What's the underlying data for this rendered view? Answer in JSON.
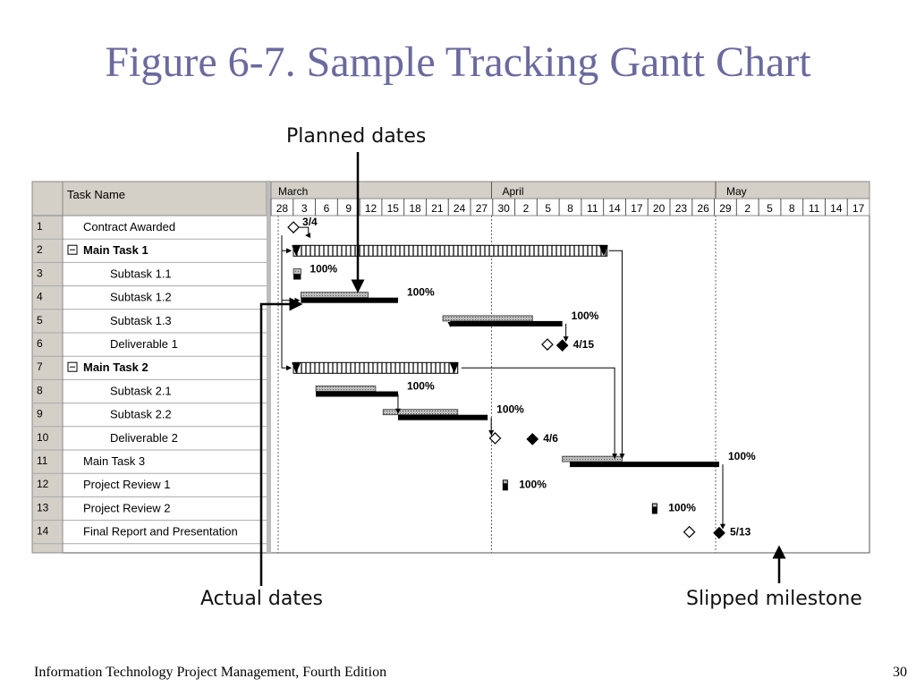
{
  "slide": {
    "title": "Figure 6-7. Sample Tracking Gantt Chart",
    "footer_left": "Information Technology Project Management, Fourth Edition",
    "page_number": "30"
  },
  "callouts": {
    "planned": "Planned dates",
    "actual": "Actual dates",
    "slipped": "Slipped milestone"
  },
  "chart_data": {
    "type": "gantt",
    "table_header": {
      "col": "Task Name"
    },
    "timescale": {
      "months": [
        "March",
        "April",
        "May"
      ],
      "days": [
        "28",
        "3",
        "6",
        "9",
        "12",
        "15",
        "18",
        "21",
        "24",
        "27",
        "30",
        "2",
        "5",
        "8",
        "11",
        "14",
        "17",
        "20",
        "23",
        "26",
        "29",
        "2",
        "5",
        "8",
        "11",
        "14",
        "17"
      ]
    },
    "tasks": [
      {
        "id": "1",
        "name": "Contract Awarded",
        "kind": "milestone",
        "indent": 1,
        "bold": false,
        "planned": 3,
        "label": "3/4"
      },
      {
        "id": "2",
        "name": "Main Task 1",
        "kind": "summary",
        "indent": 0,
        "bold": true,
        "start": 3,
        "end": 45
      },
      {
        "id": "3",
        "name": "Subtask 1.1",
        "kind": "task",
        "indent": 2,
        "bold": false,
        "planned": [
          3,
          4
        ],
        "actual": [
          3,
          4
        ],
        "pct": "100%"
      },
      {
        "id": "4",
        "name": "Subtask 1.2",
        "kind": "task",
        "indent": 2,
        "bold": false,
        "planned": [
          4,
          13
        ],
        "actual": [
          4,
          17
        ],
        "pct": "100%"
      },
      {
        "id": "5",
        "name": "Subtask 1.3",
        "kind": "task",
        "indent": 2,
        "bold": false,
        "planned": [
          23,
          35
        ],
        "actual": [
          24,
          39
        ],
        "pct": "100%"
      },
      {
        "id": "6",
        "name": "Deliverable 1",
        "kind": "milestone",
        "indent": 2,
        "bold": false,
        "planned": 37,
        "actual": 39,
        "label": "4/15"
      },
      {
        "id": "7",
        "name": "Main Task 2",
        "kind": "summary",
        "indent": 0,
        "bold": true,
        "start": 3,
        "end": 25
      },
      {
        "id": "8",
        "name": "Subtask 2.1",
        "kind": "task",
        "indent": 2,
        "bold": false,
        "planned": [
          6,
          14
        ],
        "actual": [
          6,
          17
        ],
        "pct": "100%"
      },
      {
        "id": "9",
        "name": "Subtask 2.2",
        "kind": "task",
        "indent": 2,
        "bold": false,
        "planned": [
          15,
          25
        ],
        "actual": [
          17,
          29
        ],
        "pct": "100%"
      },
      {
        "id": "10",
        "name": "Deliverable 2",
        "kind": "milestone",
        "indent": 2,
        "bold": false,
        "planned": 30,
        "actual": 35,
        "label": "4/6"
      },
      {
        "id": "11",
        "name": "Main Task 3",
        "kind": "task",
        "indent": 1,
        "bold": false,
        "planned": [
          39,
          47
        ],
        "actual": [
          40,
          60
        ],
        "pct": "100%"
      },
      {
        "id": "12",
        "name": "Project Review 1",
        "kind": "short",
        "indent": 1,
        "bold": false,
        "planned": [
          31,
          32
        ],
        "pct": "100%"
      },
      {
        "id": "13",
        "name": "Project Review 2",
        "kind": "short",
        "indent": 1,
        "bold": false,
        "planned": [
          51,
          52
        ],
        "pct": "100%"
      },
      {
        "id": "14",
        "name": "Final Report and Presentation",
        "kind": "milestone",
        "indent": 1,
        "bold": false,
        "planned": 56,
        "actual": 60,
        "label": "5/13"
      }
    ],
    "title": "",
    "xlabel": "",
    "ylabel": "",
    "grid": false
  }
}
